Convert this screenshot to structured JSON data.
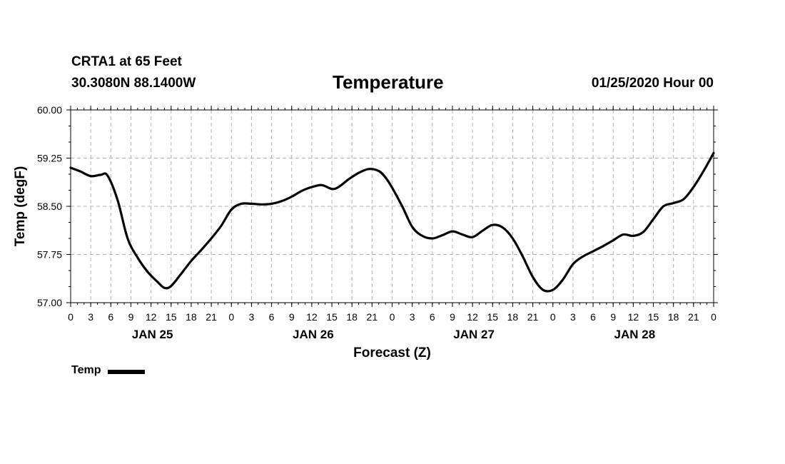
{
  "header": {
    "station": "CRTA1 at 65 Feet",
    "coords": "30.3080N 88.1400W",
    "title": "Temperature",
    "issued": "01/25/2020 Hour 00"
  },
  "chart_data": {
    "type": "line",
    "title": "Temperature",
    "xlabel": "Forecast (Z)",
    "ylabel": "Temp (degF)",
    "xlim": [
      0,
      96
    ],
    "ylim": [
      57.0,
      60.0
    ],
    "yticks": [
      "57.00",
      "57.75",
      "58.50",
      "59.25",
      "60.00"
    ],
    "xtick_labels": [
      "0",
      "3",
      "6",
      "9",
      "12",
      "15",
      "18",
      "21",
      "0",
      "3",
      "6",
      "9",
      "12",
      "15",
      "18",
      "21",
      "0",
      "3",
      "6",
      "9",
      "12",
      "15",
      "18",
      "21",
      "0",
      "3",
      "6",
      "9",
      "12",
      "15",
      "18",
      "21",
      "0"
    ],
    "day_labels": [
      {
        "label": "JAN 25",
        "hour": 12
      },
      {
        "label": "JAN 26",
        "hour": 36
      },
      {
        "label": "JAN 27",
        "hour": 60
      },
      {
        "label": "JAN 28",
        "hour": 84
      }
    ],
    "grid": true,
    "legend_position": "bottom-left",
    "series": [
      {
        "name": "Temp",
        "color": "#000000",
        "x": [
          0,
          1.5,
          3,
          4.5,
          5.5,
          7,
          8.5,
          10,
          11.5,
          13,
          14,
          15,
          16.5,
          18,
          19.5,
          21,
          22.5,
          24,
          25.5,
          27,
          28.5,
          30,
          31.5,
          33,
          34.5,
          36,
          37.5,
          39,
          40,
          41.5,
          43,
          44.5,
          46,
          47,
          48,
          49.5,
          51,
          52.5,
          54,
          55.5,
          57,
          58.5,
          60,
          61.5,
          63,
          64.5,
          66,
          67.5,
          69,
          70.5,
          72,
          73.5,
          75,
          76.5,
          78,
          79.5,
          81,
          82.5,
          84,
          85.5,
          87,
          88.5,
          90,
          91.5,
          93,
          94.5,
          96
        ],
        "values": [
          59.1,
          59.04,
          58.97,
          58.99,
          58.98,
          58.6,
          58.0,
          57.7,
          57.48,
          57.32,
          57.23,
          57.26,
          57.45,
          57.65,
          57.82,
          58.0,
          58.2,
          58.45,
          58.54,
          58.54,
          58.53,
          58.54,
          58.58,
          58.65,
          58.74,
          58.8,
          58.83,
          58.77,
          58.8,
          58.92,
          59.02,
          59.08,
          59.05,
          58.95,
          58.79,
          58.5,
          58.18,
          58.04,
          58.0,
          58.05,
          58.11,
          58.06,
          58.02,
          58.12,
          58.21,
          58.17,
          58.0,
          57.72,
          57.4,
          57.2,
          57.2,
          57.36,
          57.6,
          57.72,
          57.8,
          57.88,
          57.97,
          58.06,
          58.04,
          58.1,
          58.3,
          58.5,
          58.55,
          58.61,
          58.8,
          59.05,
          59.33
        ]
      }
    ]
  },
  "legend": {
    "label": "Temp"
  }
}
